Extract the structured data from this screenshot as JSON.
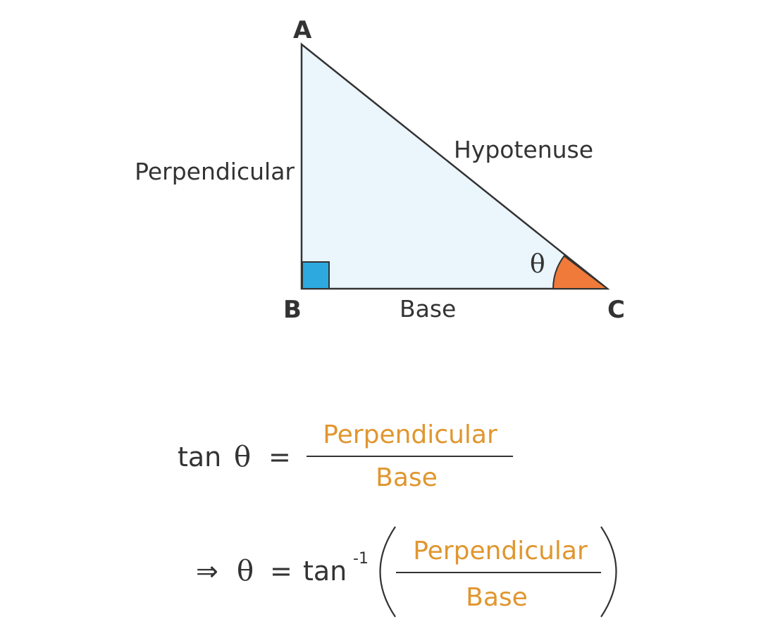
{
  "colors": {
    "triangle_fill": "#eaf5fc",
    "triangle_stroke": "#333333",
    "right_angle_fill": "#2ea9e0",
    "angle_fill": "#f07a3a",
    "fraction_text": "#e0962e",
    "text": "#333333"
  },
  "triangle": {
    "vertex_a": "A",
    "vertex_b": "B",
    "vertex_c": "C",
    "side_perpendicular": "Perpendicular",
    "side_hypotenuse": "Hypotenuse",
    "side_base": "Base",
    "angle_symbol": "θ"
  },
  "formula1": {
    "lhs_func": "tan",
    "lhs_theta": "θ",
    "equals": "=",
    "numerator": "Perpendicular",
    "denominator": "Base"
  },
  "formula2": {
    "implies": "⇒",
    "theta": "θ",
    "equals": "=",
    "func": "tan",
    "superscript": "-1",
    "numerator": "Perpendicular",
    "denominator": "Base"
  }
}
